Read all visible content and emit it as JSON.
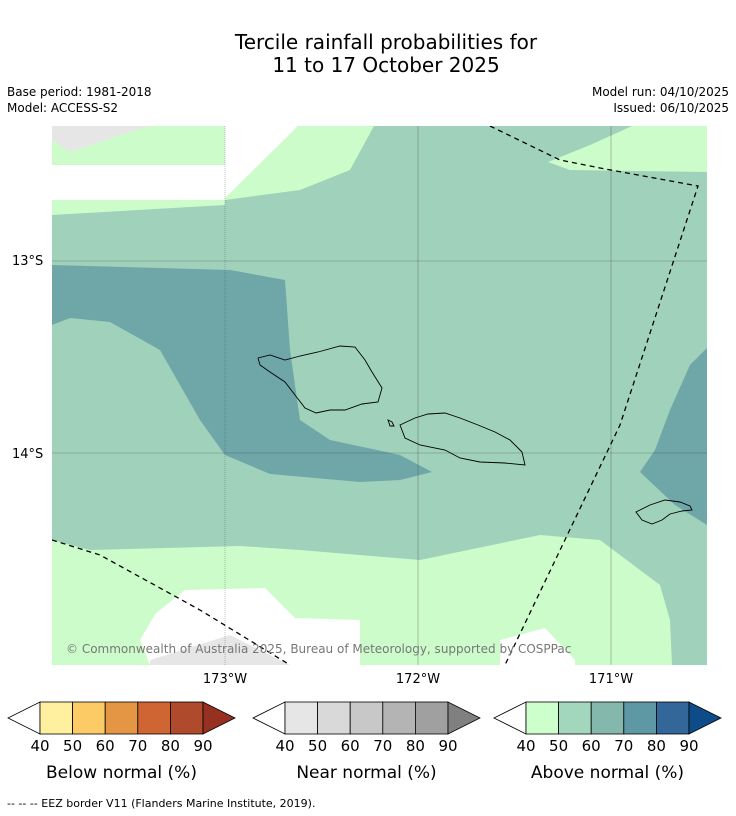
{
  "title_line1": "Tercile rainfall probabilities for",
  "title_line2": "11 to 17 October 2025",
  "base_period": "Base period: 1981-2018",
  "model": "Model: ACCESS-S2",
  "model_run": "Model run: 04/10/2025",
  "issued": "Issued: 06/10/2025",
  "copyright": "© Commonwealth of Australia 2025, Bureau of Meteorology, supported by COSPPac",
  "lat_labels": [
    "13°S",
    "14°S"
  ],
  "lon_labels": [
    "173°W",
    "172°W",
    "171°W"
  ],
  "colorbars": [
    {
      "label": "Below normal (%)",
      "ticks": [
        "40",
        "50",
        "60",
        "70",
        "80",
        "90"
      ],
      "colors": [
        "#fff0a0",
        "#fdcb65",
        "#e49645",
        "#d06534",
        "#b04a2c",
        "#963121"
      ]
    },
    {
      "label": "Near normal (%)",
      "ticks": [
        "40",
        "50",
        "60",
        "70",
        "80",
        "90"
      ],
      "colors": [
        "#e6e6e6",
        "#d9d9d9",
        "#c8c8c8",
        "#b4b4b4",
        "#a0a0a0",
        "#808080"
      ]
    },
    {
      "label": "Above normal (%)",
      "ticks": [
        "40",
        "50",
        "60",
        "70",
        "80",
        "90"
      ],
      "colors": [
        "#ccffcc",
        "#a2d7bd",
        "#84b8ad",
        "#5e98a5",
        "#336699",
        "#0e4c89"
      ]
    }
  ],
  "footnote": "--  --  -- EEZ border V11 (Flanders Marine Institute, 2019)."
}
